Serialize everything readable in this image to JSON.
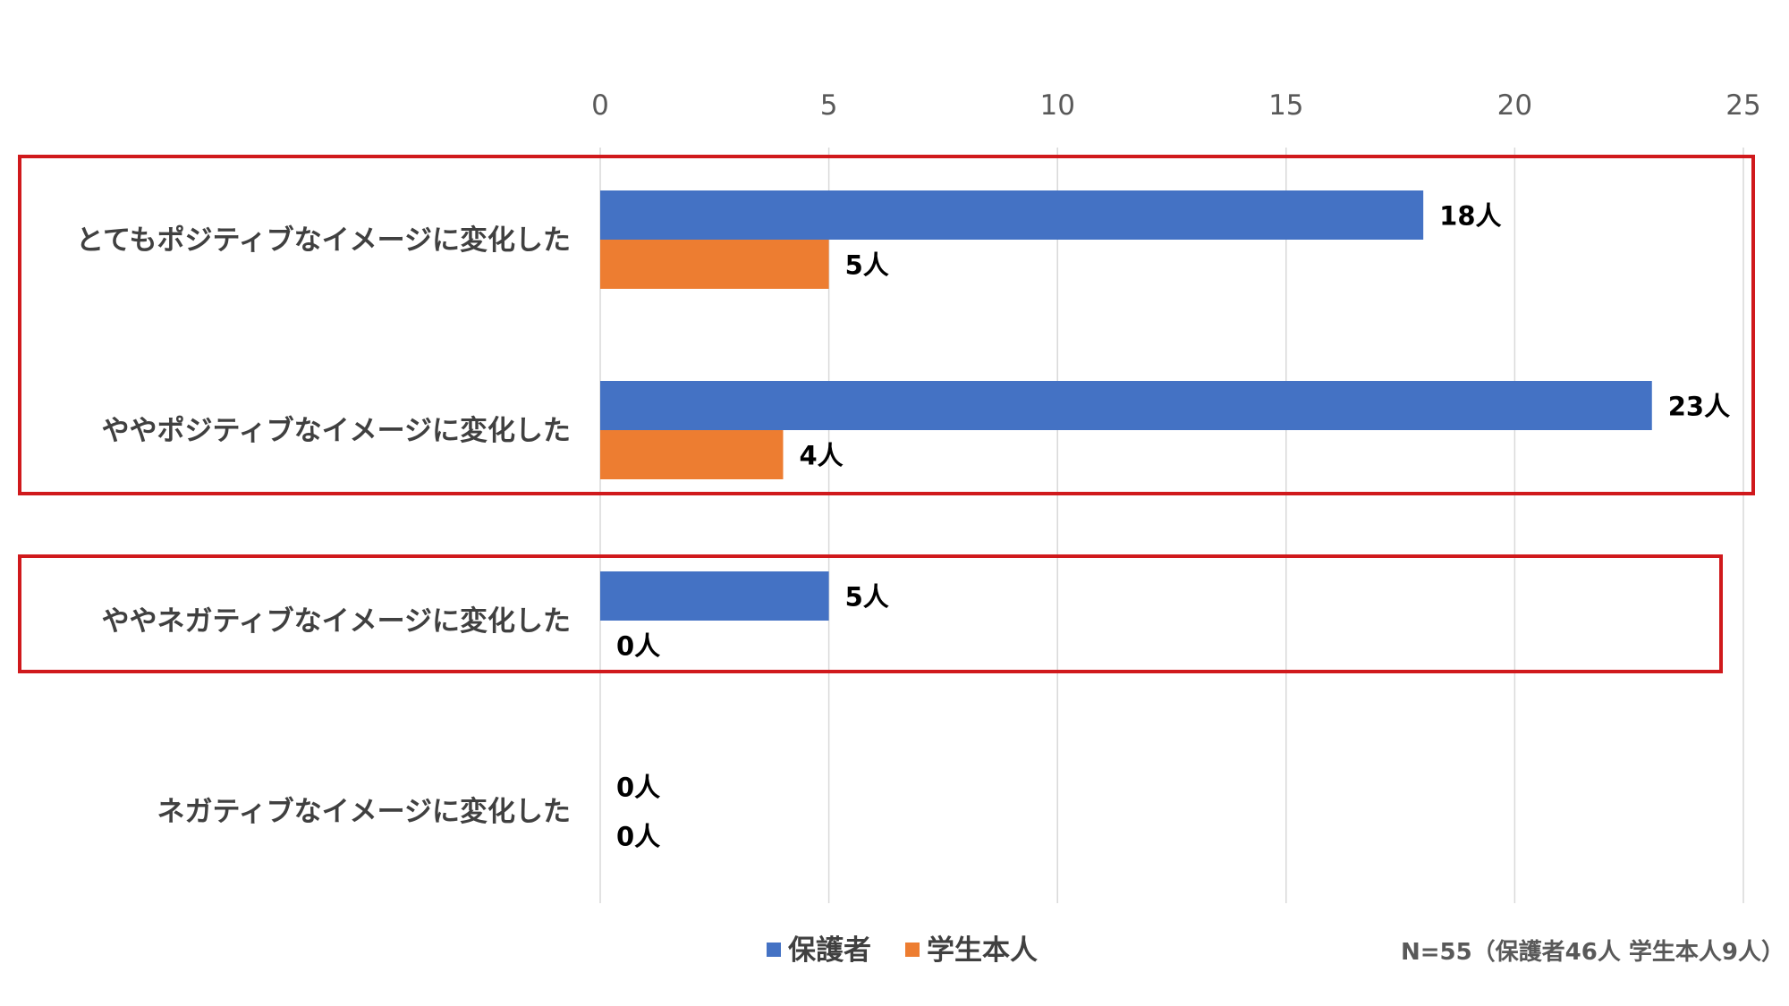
{
  "chart_data": {
    "type": "bar",
    "orientation": "horizontal",
    "categories": [
      "とてもポジティブなイメージに変化した",
      "ややポジティブなイメージに変化した",
      "ややネガティブなイメージに変化した",
      "ネガティブなイメージに変化した"
    ],
    "series": [
      {
        "name": "保護者",
        "color": "#4472C4",
        "values": [
          18,
          23,
          5,
          0
        ],
        "labels": [
          "18人",
          "23人",
          "5人",
          "0人"
        ]
      },
      {
        "name": "学生本人",
        "color": "#ED7D31",
        "values": [
          5,
          4,
          0,
          0
        ],
        "labels": [
          "5人",
          "4人",
          "0人",
          "0人"
        ]
      }
    ],
    "xlim": [
      0,
      25
    ],
    "xticks": [
      "0",
      "5",
      "10",
      "15",
      "20",
      "25"
    ],
    "xaxis_position": "top",
    "grid": true,
    "legend_position": "bottom",
    "note": "N=55（保護者46人 学生本人9人）",
    "highlight_groups": [
      [
        0,
        1
      ],
      [
        2
      ]
    ],
    "highlight_color": "#D0191C"
  }
}
